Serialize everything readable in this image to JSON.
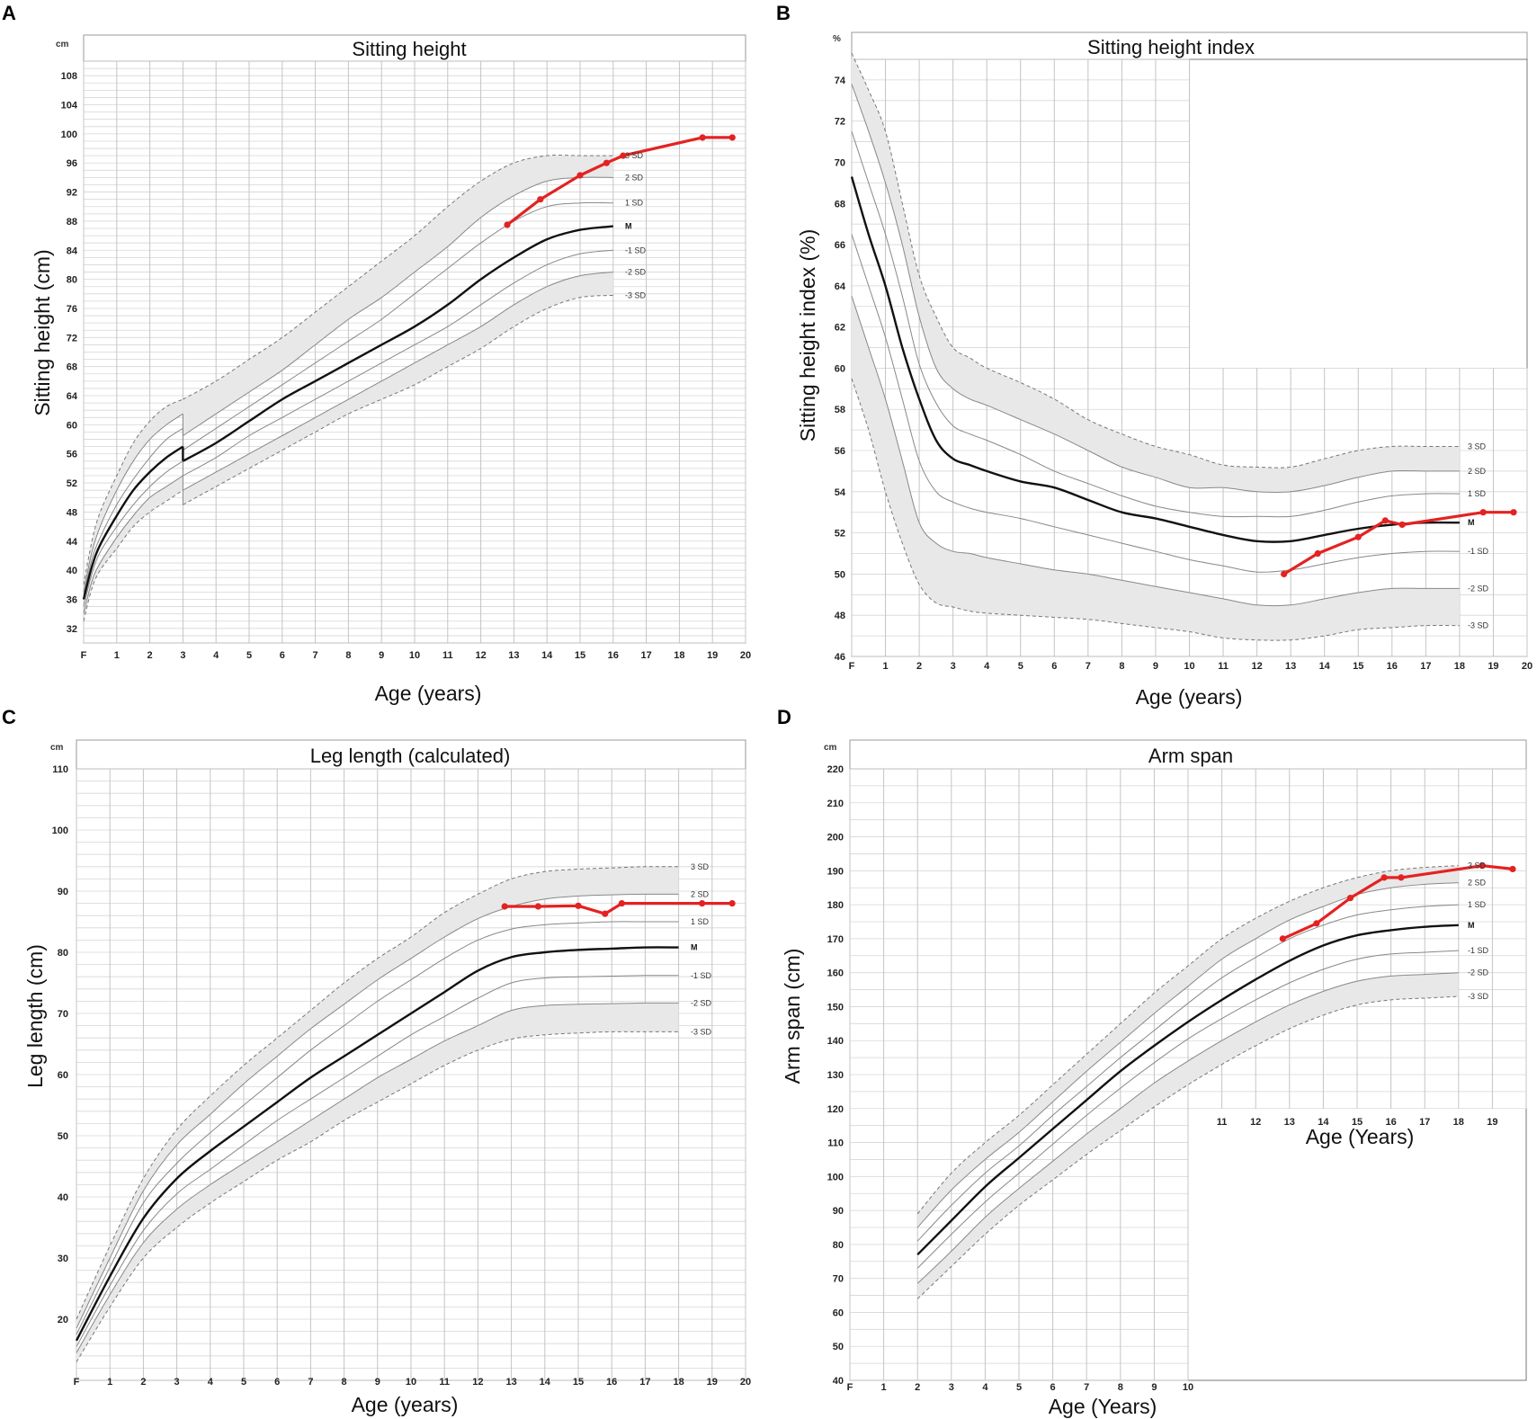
{
  "panels": [
    {
      "panel_label": "A",
      "title": "Sitting height",
      "unit": "cm",
      "xlabel": "Age (years)",
      "ylabel": "Sitting height (cm)",
      "sd_labels": [
        "3 SD",
        "2 SD",
        "1 SD",
        "M",
        "-1 SD",
        "-2 SD",
        "-3 SD"
      ]
    },
    {
      "panel_label": "B",
      "title": "Sitting height index",
      "unit": "%",
      "xlabel": "Age (years)",
      "ylabel": "Sitting height index (%)",
      "sd_labels": [
        "3 SD",
        "2 SD",
        "1 SD",
        "M",
        "-1 SD",
        "-2 SD",
        "-3 SD"
      ]
    },
    {
      "panel_label": "C",
      "title": "Leg length (calculated)",
      "unit": "cm",
      "xlabel": "Age (years)",
      "ylabel": "Leg length (cm)",
      "sd_labels": [
        "3 SD",
        "2 SD",
        "1 SD",
        "M",
        "-1 SD",
        "-2 SD",
        "-3 SD"
      ]
    },
    {
      "panel_label": "D",
      "title": "Arm span",
      "unit": "cm",
      "xlabel": "Age (Years)",
      "xlabel_inner": "Age (Years)",
      "ylabel": "Arm span (cm)",
      "sd_labels": [
        "3 SD",
        "2 SD",
        "1 SD",
        "M",
        "-1 SD",
        "-2 SD",
        "-3 SD"
      ]
    }
  ],
  "chart_data": [
    {
      "type": "line",
      "title": "Sitting height",
      "xlabel": "Age (years)",
      "ylabel": "Sitting height (cm)",
      "xlim": [
        0,
        20
      ],
      "ylim": [
        30,
        110
      ],
      "x_tick_labels": [
        "F",
        "1",
        "2",
        "3",
        "4",
        "5",
        "6",
        "7",
        "8",
        "9",
        "10",
        "11",
        "12",
        "13",
        "14",
        "15",
        "16",
        "17",
        "18",
        "19",
        "20"
      ],
      "y_ticks": [
        32,
        36,
        40,
        44,
        48,
        52,
        56,
        60,
        64,
        68,
        72,
        76,
        80,
        84,
        88,
        92,
        96,
        100,
        104,
        108
      ],
      "reference_x": [
        0,
        0.25,
        0.5,
        1,
        1.5,
        2,
        2.5,
        3,
        3,
        4,
        5,
        6,
        7,
        8,
        9,
        10,
        11,
        12,
        13,
        14,
        15,
        16
      ],
      "series": [
        {
          "name": "3 SD",
          "values": [
            38,
            44,
            48,
            53,
            57.5,
            60.5,
            62.5,
            63.5,
            63.5,
            66,
            69,
            72,
            75.5,
            79,
            82.5,
            86,
            90,
            93.5,
            96,
            97,
            97,
            97
          ]
        },
        {
          "name": "2 SD",
          "values": [
            37,
            42.5,
            46,
            51,
            55,
            58,
            60,
            61.5,
            58.5,
            61.5,
            64.5,
            67.5,
            71,
            74.5,
            77.5,
            81,
            84.5,
            88.5,
            91.5,
            93.5,
            94,
            94
          ]
        },
        {
          "name": "1 SD",
          "values": [
            36.5,
            41.5,
            44.5,
            49,
            52.5,
            55.5,
            58,
            59.5,
            56.5,
            59.5,
            62.5,
            65.5,
            68.5,
            71.5,
            74.5,
            78,
            81.5,
            85,
            88,
            90,
            90.5,
            90.5
          ]
        },
        {
          "name": "M",
          "values": [
            36,
            40.5,
            43.5,
            47.5,
            51,
            53.5,
            55.5,
            57,
            55,
            57.5,
            60.5,
            63.5,
            66,
            68.5,
            71,
            73.5,
            76.5,
            80,
            83,
            85.5,
            86.8,
            87.3
          ]
        },
        {
          "name": "-1 SD",
          "values": [
            35,
            39.5,
            42.5,
            46,
            49,
            51.5,
            53.5,
            55,
            53,
            55.5,
            58.5,
            61,
            63.5,
            66,
            68.5,
            71,
            73.5,
            76.5,
            79.5,
            82,
            83.5,
            84
          ]
        },
        {
          "name": "-2 SD",
          "values": [
            34,
            38.5,
            41,
            44.5,
            47.5,
            50,
            51.5,
            53,
            51,
            53.5,
            56,
            58.5,
            61,
            63.5,
            66,
            68.5,
            71,
            73.5,
            76.5,
            79,
            80.5,
            81
          ]
        },
        {
          "name": "-3 SD",
          "values": [
            33,
            37.5,
            40,
            43,
            46,
            48,
            49.5,
            51,
            49,
            51.5,
            54,
            56.5,
            59,
            61.5,
            63.5,
            65.5,
            68,
            70.5,
            73.5,
            76,
            77.5,
            77.8
          ]
        }
      ],
      "patient": {
        "x": [
          12.8,
          13.8,
          15,
          15.8,
          16.3,
          18.7,
          19.6
        ],
        "values": [
          87.5,
          91,
          94.3,
          96,
          97,
          99.5,
          99.5
        ]
      }
    },
    {
      "type": "line",
      "title": "Sitting height index",
      "xlabel": "Age (years)",
      "ylabel": "Sitting height index (%)",
      "xlim": [
        0,
        20
      ],
      "ylim": [
        46,
        75
      ],
      "x_tick_labels": [
        "F",
        "1",
        "2",
        "3",
        "4",
        "5",
        "6",
        "7",
        "8",
        "9",
        "10",
        "11",
        "12",
        "13",
        "14",
        "15",
        "16",
        "17",
        "18",
        "19",
        "20"
      ],
      "y_ticks": [
        46,
        48,
        50,
        52,
        54,
        56,
        58,
        60,
        62,
        64,
        66,
        68,
        70,
        72,
        74
      ],
      "reference_x": [
        0,
        0.5,
        1,
        1.5,
        2,
        2.5,
        3,
        3.5,
        4,
        5,
        6,
        7,
        8,
        9,
        10,
        11,
        12,
        13,
        14,
        15,
        16,
        17,
        18
      ],
      "series": [
        {
          "name": "3 SD",
          "values": [
            75.3,
            73.5,
            71.5,
            68,
            64.5,
            62.5,
            61,
            60.5,
            60,
            59.3,
            58.5,
            57.5,
            56.8,
            56.2,
            55.8,
            55.3,
            55.2,
            55.2,
            55.6,
            56,
            56.2,
            56.2,
            56.2
          ]
        },
        {
          "name": "2 SD",
          "values": [
            73.8,
            71.5,
            69,
            66,
            62.5,
            60,
            59,
            58.5,
            58.2,
            57.5,
            56.8,
            56,
            55.2,
            54.7,
            54.2,
            54.2,
            54,
            54,
            54.3,
            54.7,
            55,
            55,
            55
          ]
        },
        {
          "name": "1 SD",
          "values": [
            71.5,
            69,
            66.5,
            63.5,
            60.2,
            58.3,
            57.2,
            56.8,
            56.5,
            55.8,
            55,
            54.4,
            53.8,
            53.3,
            53,
            52.8,
            52.8,
            52.8,
            53.1,
            53.5,
            53.8,
            53.9,
            53.9
          ]
        },
        {
          "name": "M",
          "values": [
            69.3,
            66.5,
            64,
            61,
            58.5,
            56.5,
            55.6,
            55.3,
            55,
            54.5,
            54.2,
            53.6,
            53,
            52.7,
            52.3,
            51.9,
            51.6,
            51.6,
            51.9,
            52.2,
            52.4,
            52.5,
            52.5
          ]
        },
        {
          "name": "-1 SD",
          "values": [
            66.5,
            64,
            61.5,
            58.5,
            55.5,
            54,
            53.5,
            53.2,
            53,
            52.7,
            52.3,
            51.9,
            51.5,
            51.1,
            50.7,
            50.4,
            50.1,
            50.2,
            50.5,
            50.8,
            51,
            51.1,
            51.1
          ]
        },
        {
          "name": "-2 SD",
          "values": [
            63.5,
            61,
            58.5,
            55.5,
            52.5,
            51.5,
            51.1,
            51,
            50.8,
            50.5,
            50.2,
            50,
            49.7,
            49.4,
            49.1,
            48.8,
            48.5,
            48.5,
            48.8,
            49.1,
            49.3,
            49.3,
            49.3
          ]
        },
        {
          "name": "-3 SD",
          "values": [
            59.5,
            57,
            54,
            51.5,
            49.5,
            48.6,
            48.4,
            48.2,
            48.1,
            48,
            47.9,
            47.8,
            47.6,
            47.4,
            47.2,
            46.9,
            46.8,
            46.8,
            47,
            47.3,
            47.4,
            47.5,
            47.5
          ]
        }
      ],
      "patient": {
        "x": [
          12.8,
          13.8,
          15,
          15.8,
          16.3,
          18.7,
          19.6
        ],
        "values": [
          50,
          51,
          51.8,
          52.6,
          52.4,
          53,
          53
        ]
      }
    },
    {
      "type": "line",
      "title": "Leg length (calculated)",
      "xlabel": "Age (years)",
      "ylabel": "Leg length (cm)",
      "xlim": [
        0,
        20
      ],
      "ylim": [
        10,
        110
      ],
      "x_tick_labels": [
        "F",
        "1",
        "2",
        "3",
        "4",
        "5",
        "6",
        "7",
        "8",
        "9",
        "10",
        "11",
        "12",
        "13",
        "14",
        "15",
        "16",
        "17",
        "18",
        "19",
        "20"
      ],
      "y_ticks": [
        20,
        30,
        40,
        50,
        60,
        70,
        80,
        90,
        100,
        110
      ],
      "reference_x": [
        0,
        1,
        2,
        3,
        4,
        5,
        6,
        7,
        8,
        9,
        10,
        11,
        12,
        13,
        14,
        15,
        16,
        17,
        18
      ],
      "series": [
        {
          "name": "3 SD",
          "values": [
            20,
            32,
            43,
            51,
            56.5,
            61.5,
            66,
            70.5,
            75,
            79,
            82.5,
            86.5,
            89.5,
            92,
            93.2,
            93.6,
            93.8,
            94,
            94
          ]
        },
        {
          "name": "2 SD",
          "values": [
            18.5,
            30,
            41,
            48.5,
            53.5,
            58.5,
            63,
            67.5,
            71.5,
            75.5,
            79,
            82.5,
            85.5,
            87.5,
            88.7,
            89.2,
            89.4,
            89.5,
            89.5
          ]
        },
        {
          "name": "1 SD",
          "values": [
            17.5,
            28.5,
            39,
            45.5,
            50.5,
            55,
            59.5,
            64,
            68,
            72,
            75.5,
            79,
            82,
            83.8,
            84.5,
            84.8,
            85,
            85,
            85
          ]
        },
        {
          "name": "M",
          "values": [
            16.5,
            27,
            36.5,
            43,
            47.5,
            51.5,
            55.5,
            59.5,
            63,
            66.5,
            70,
            73.5,
            77,
            79.2,
            80,
            80.4,
            80.6,
            80.8,
            80.8
          ]
        },
        {
          "name": "-1 SD",
          "values": [
            15.5,
            25.5,
            34.5,
            40.5,
            44.5,
            48.5,
            52.5,
            56,
            59.5,
            63,
            66.5,
            69.5,
            72.5,
            75,
            75.8,
            76,
            76.1,
            76.2,
            76.2
          ]
        },
        {
          "name": "-2 SD",
          "values": [
            14.5,
            24,
            32.5,
            38,
            42,
            45.5,
            49,
            52.5,
            56,
            59.5,
            62.5,
            65.5,
            68,
            70.5,
            71.3,
            71.5,
            71.6,
            71.7,
            71.7
          ]
        },
        {
          "name": "-3 SD",
          "values": [
            13,
            22,
            30,
            35,
            39,
            42.5,
            46,
            49,
            52.5,
            55.5,
            58.5,
            61.5,
            64,
            65.8,
            66.5,
            66.8,
            67,
            67,
            67
          ]
        }
      ],
      "patient": {
        "x": [
          12.8,
          13.8,
          15,
          15.8,
          16.3,
          18.7,
          19.6
        ],
        "values": [
          87.5,
          87.5,
          87.6,
          86.3,
          88,
          88,
          88
        ]
      }
    },
    {
      "type": "line",
      "title": "Arm span",
      "xlabel": "Age (Years)",
      "ylabel": "Arm span (cm)",
      "xlim": [
        0,
        20
      ],
      "ylim": [
        40,
        220
      ],
      "x_tick_labels": [
        "F",
        "1",
        "2",
        "3",
        "4",
        "5",
        "6",
        "7",
        "8",
        "9",
        "10"
      ],
      "x_tick_labels_inner": [
        "11",
        "12",
        "13",
        "14",
        "15",
        "16",
        "17",
        "18",
        "19"
      ],
      "y_ticks": [
        40,
        50,
        60,
        70,
        80,
        90,
        100,
        110,
        120,
        130,
        140,
        150,
        160,
        170,
        180,
        190,
        200,
        210,
        220
      ],
      "reference_x": [
        2,
        3,
        4,
        5,
        6,
        7,
        8,
        9,
        10,
        11,
        12,
        13,
        14,
        15,
        16,
        17,
        18
      ],
      "series": [
        {
          "name": "3 SD",
          "values": [
            89,
            101,
            110,
            118,
            127,
            136,
            145,
            154,
            162,
            170,
            176,
            181,
            185,
            188,
            190,
            191,
            191.5
          ]
        },
        {
          "name": "2 SD",
          "values": [
            85,
            96,
            105,
            113,
            122,
            131,
            139.5,
            148,
            156,
            164,
            170,
            175.5,
            179.5,
            183,
            185,
            186,
            186.5
          ]
        },
        {
          "name": "1 SD",
          "values": [
            81,
            91.5,
            101,
            109,
            118,
            126.5,
            135,
            143,
            151,
            158.5,
            164.5,
            170,
            174,
            177,
            178.5,
            179.5,
            180
          ]
        },
        {
          "name": "M",
          "values": [
            77,
            87,
            97,
            105.5,
            114,
            122.5,
            131,
            138.5,
            145.5,
            152,
            158,
            163.5,
            168,
            171,
            172.5,
            173.5,
            174
          ]
        },
        {
          "name": "-1 SD",
          "values": [
            73,
            83,
            92.5,
            101,
            109.5,
            118,
            126,
            133.5,
            140.5,
            146.5,
            152,
            157,
            161,
            164,
            165.5,
            166,
            166.5
          ]
        },
        {
          "name": "-2 SD",
          "values": [
            68.5,
            78,
            88,
            96.5,
            104.5,
            112.5,
            120,
            127.5,
            134,
            140,
            145.5,
            150.5,
            154.5,
            157.5,
            159,
            159.5,
            160
          ]
        },
        {
          "name": "-3 SD",
          "values": [
            64,
            73.5,
            83,
            91.5,
            99,
            106.5,
            113.5,
            120.5,
            127,
            133,
            138.5,
            143.5,
            147.5,
            150.5,
            152,
            152.5,
            153
          ]
        }
      ],
      "patient": {
        "x": [
          12.8,
          13.8,
          14.8,
          15.8,
          16.3,
          18.7,
          19.6
        ],
        "values": [
          170,
          174.5,
          182,
          188,
          188,
          191.5,
          190.5
        ]
      }
    }
  ]
}
